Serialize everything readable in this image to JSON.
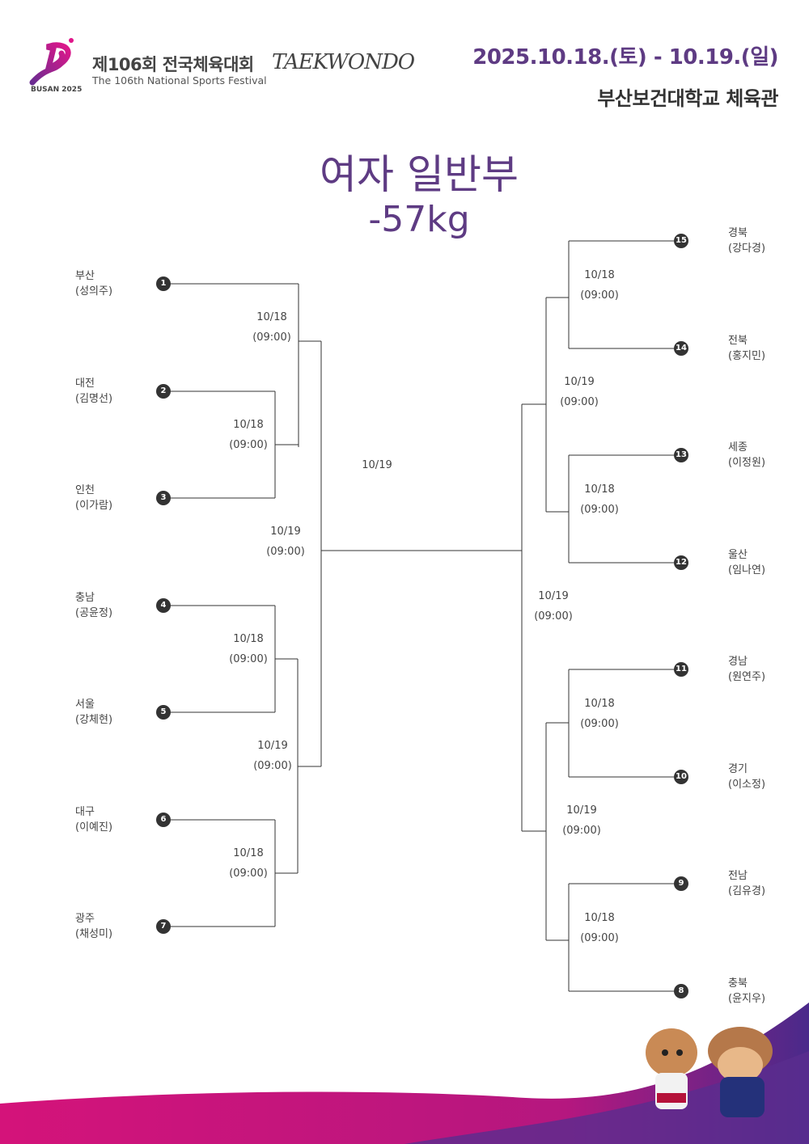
{
  "header": {
    "logo_text": "BUSAN 2025",
    "festival_ko": "제106회 전국체육대회",
    "festival_en": "The 106th National Sports Festival",
    "sport_logo": "TAEKWONDO",
    "date": "2025.10.18.(토) - 10.19.(일)",
    "venue": "부산보건대학교 체육관"
  },
  "event": {
    "title": "여자 일반부",
    "weight": "-57kg"
  },
  "colors": {
    "accent": "#5e3b83",
    "magenta": "#d4137a",
    "line": "#333333"
  },
  "left": [
    {
      "seed": "1",
      "region": "부산",
      "name": "(성의주)"
    },
    {
      "seed": "2",
      "region": "대전",
      "name": "(김명선)"
    },
    {
      "seed": "3",
      "region": "인천",
      "name": "(이가람)"
    },
    {
      "seed": "4",
      "region": "충남",
      "name": "(공윤정)"
    },
    {
      "seed": "5",
      "region": "서울",
      "name": "(강체현)"
    },
    {
      "seed": "6",
      "region": "대구",
      "name": "(이예진)"
    },
    {
      "seed": "7",
      "region": "광주",
      "name": "(채성미)"
    }
  ],
  "right": [
    {
      "seed": "15",
      "region": "경북",
      "name": "(강다경)"
    },
    {
      "seed": "14",
      "region": "전북",
      "name": "(홍지민)"
    },
    {
      "seed": "13",
      "region": "세종",
      "name": "(이정원)"
    },
    {
      "seed": "12",
      "region": "울산",
      "name": "(임나연)"
    },
    {
      "seed": "11",
      "region": "경남",
      "name": "(원연주)"
    },
    {
      "seed": "10",
      "region": "경기",
      "name": "(이소정)"
    },
    {
      "seed": "9",
      "region": "전남",
      "name": "(김유경)"
    },
    {
      "seed": "8",
      "region": "충북",
      "name": "(윤지우)"
    }
  ],
  "matches": [
    {
      "date": "10/18",
      "time": "(09:00)"
    },
    {
      "date": "10/18",
      "time": "(09:00)"
    },
    {
      "date": "10/19",
      "time": "(09:00)"
    },
    {
      "date": "10/18",
      "time": "(09:00)"
    },
    {
      "date": "10/19",
      "time": "(09:00)"
    },
    {
      "date": "10/18",
      "time": "(09:00)"
    },
    {
      "date": "10/18",
      "time": "(09:00)"
    },
    {
      "date": "10/19",
      "time": "(09:00)"
    },
    {
      "date": "10/18",
      "time": "(09:00)"
    },
    {
      "date": "10/19",
      "time": "(09:00)"
    },
    {
      "date": "10/18",
      "time": "(09:00)"
    },
    {
      "date": "10/19",
      "time": "(09:00)"
    },
    {
      "date": "10/18",
      "time": "(09:00)"
    }
  ],
  "final": {
    "date": "10/19"
  }
}
